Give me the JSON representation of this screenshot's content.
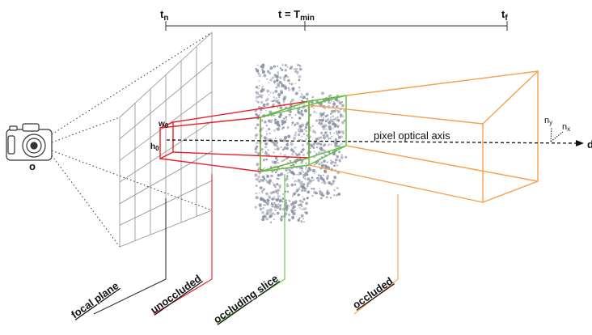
{
  "timeline": {
    "t_near": {
      "main": "t",
      "sub": "n"
    },
    "t_min": {
      "main": "t = T",
      "sub": "min"
    },
    "t_far": {
      "main": "t",
      "sub": "f"
    }
  },
  "camera": {
    "origin_label": "o",
    "icon": "camera-icon"
  },
  "pixel": {
    "width_label": {
      "main": "w",
      "sub": "0"
    },
    "height_label": {
      "main": "h",
      "sub": "0"
    }
  },
  "axis": {
    "optical_axis_label": "pixel optical axis",
    "direction_label": "d",
    "ny_label": {
      "main": "n",
      "sub": "y"
    },
    "nx_label": {
      "main": "n",
      "sub": "x"
    }
  },
  "legend": {
    "focal_plane": "focal plane",
    "unoccluded": "unoccluded",
    "occluding_slice": "occluding slice",
    "occluded": "occluded"
  },
  "colors": {
    "unoccluded": "#e8202a",
    "occluding_slice": "#5cbf3a",
    "occluded": "#f7a04b",
    "grid": "#9a9a9a",
    "points": "#8a8fa3"
  }
}
